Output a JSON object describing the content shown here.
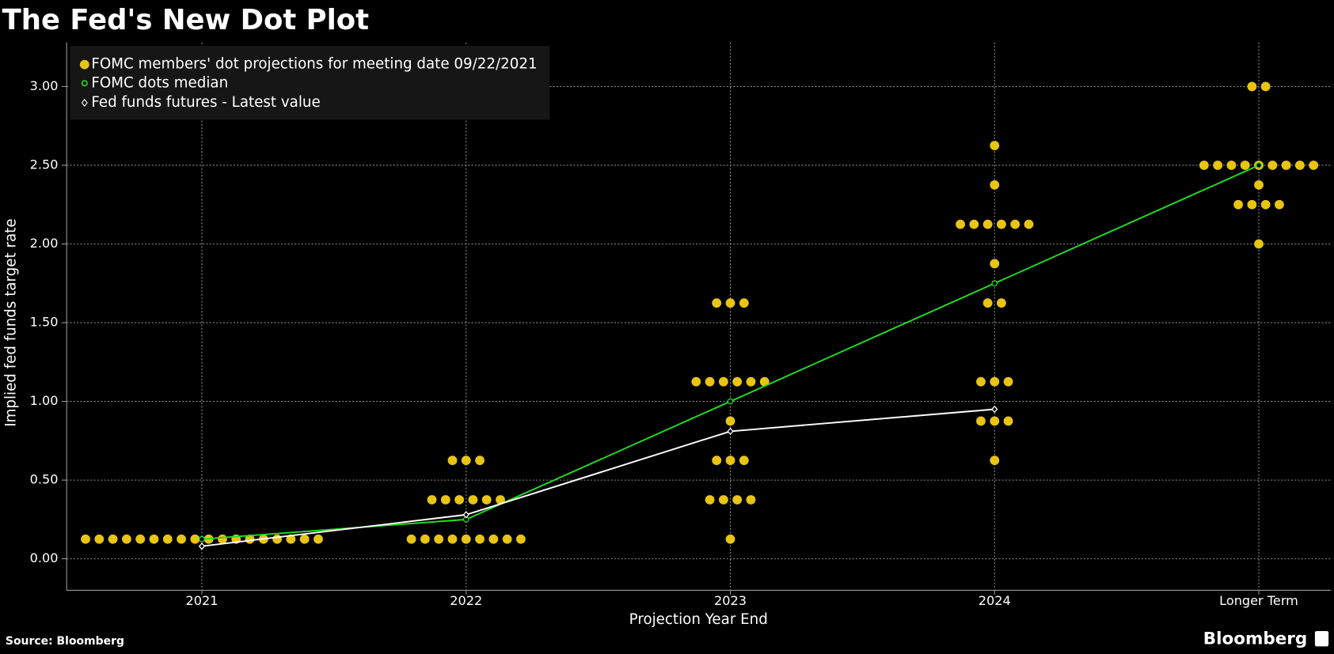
{
  "chart_data": {
    "type": "dot",
    "title": "The Fed's New Dot Plot",
    "source": "Source: Bloomberg",
    "brand": "Bloomberg",
    "xlabel": "Projection Year End",
    "ylabel": "Implied fed funds target rate",
    "categories": [
      "2021",
      "2022",
      "2023",
      "2024",
      "Longer Term"
    ],
    "ylim": [
      -0.2,
      3.28
    ],
    "yticks": [
      {
        "value": 0,
        "label": "0.00"
      },
      {
        "value": 0.5,
        "label": "0.50"
      },
      {
        "value": 1,
        "label": "1.00"
      },
      {
        "value": 1.5,
        "label": "1.50"
      },
      {
        "value": 2,
        "label": "2.00"
      },
      {
        "value": 2.5,
        "label": "2.50"
      },
      {
        "value": 3,
        "label": "3.00"
      }
    ],
    "grid": true,
    "dots": {
      "name": "FOMC members' dot projections for meeting date 09/22/2021",
      "color": "#e8c414",
      "values": [
        [
          0.125,
          0.125,
          0.125,
          0.125,
          0.125,
          0.125,
          0.125,
          0.125,
          0.125,
          0.125,
          0.125,
          0.125,
          0.125,
          0.125,
          0.125,
          0.125,
          0.125,
          0.125
        ],
        [
          0.125,
          0.125,
          0.125,
          0.125,
          0.125,
          0.125,
          0.125,
          0.125,
          0.125,
          0.375,
          0.375,
          0.375,
          0.375,
          0.375,
          0.375,
          0.625,
          0.625,
          0.625
        ],
        [
          0.125,
          0.375,
          0.375,
          0.375,
          0.375,
          0.625,
          0.625,
          0.625,
          0.875,
          1.125,
          1.125,
          1.125,
          1.125,
          1.125,
          1.125,
          1.625,
          1.625,
          1.625
        ],
        [
          0.625,
          0.875,
          0.875,
          0.875,
          1.125,
          1.125,
          1.125,
          1.625,
          1.625,
          1.875,
          2.125,
          2.125,
          2.125,
          2.125,
          2.125,
          2.125,
          2.375,
          2.625
        ],
        [
          2,
          2.25,
          2.25,
          2.25,
          2.25,
          2.375,
          2.5,
          2.5,
          2.5,
          2.5,
          2.5,
          2.5,
          2.5,
          2.5,
          2.5,
          3,
          3
        ]
      ]
    },
    "median": {
      "name": "FOMC dots median",
      "color": "#22dd22",
      "values": [
        0.125,
        0.25,
        1,
        1.75,
        2.5
      ]
    },
    "futures": {
      "name": "Fed funds futures - Latest value",
      "color": "#ffffff",
      "values": [
        0.08,
        0.28,
        0.81,
        0.95,
        null
      ]
    }
  }
}
